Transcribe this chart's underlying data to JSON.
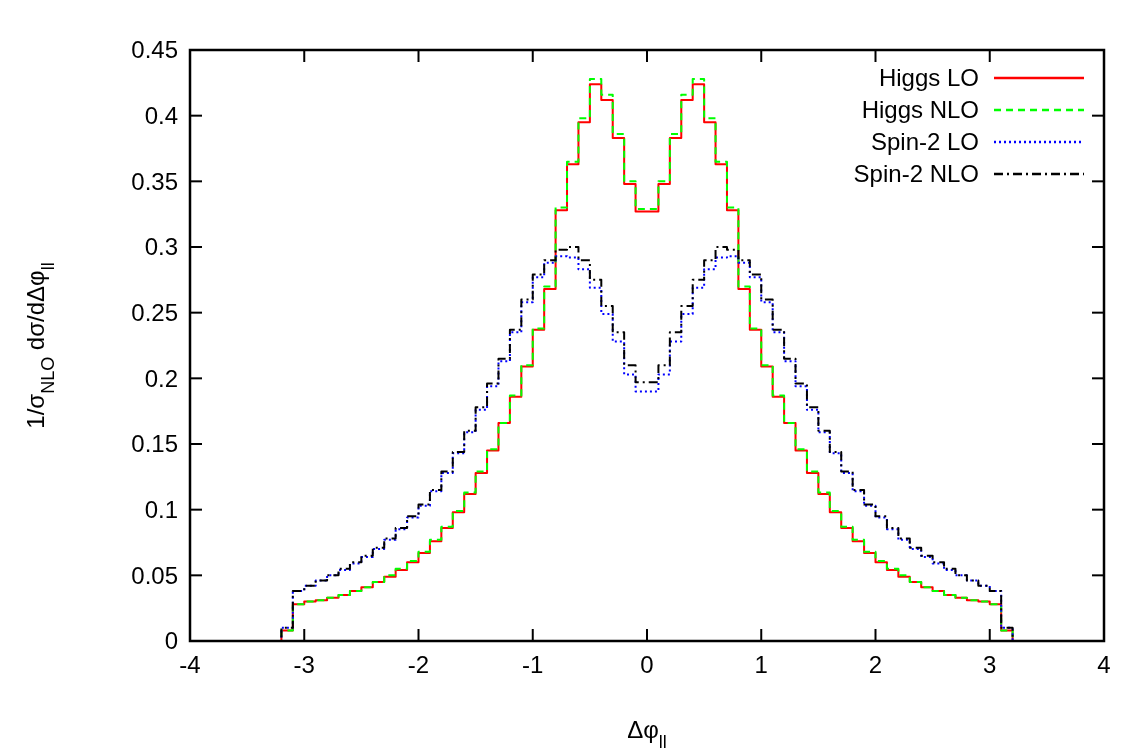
{
  "chart_data": {
    "type": "step",
    "xlabel": "Δφ$_{ll}$",
    "ylabel": "1/σ$_{NLO}$ dσ/dΔφ$_{ll}$",
    "x": [
      -4,
      -3.2,
      -3.1,
      -3.0,
      -2.9,
      -2.8,
      -2.7,
      -2.6,
      -2.5,
      -2.4,
      -2.3,
      -2.2,
      -2.1,
      -2.0,
      -1.9,
      -1.8,
      -1.7,
      -1.6,
      -1.5,
      -1.4,
      -1.3,
      -1.2,
      -1.1,
      -1.0,
      -0.9,
      -0.8,
      -0.7,
      -0.6,
      -0.5,
      -0.4,
      -0.3,
      -0.2,
      -0.1,
      0,
      0.1,
      0.2,
      0.3,
      0.4,
      0.5,
      0.6,
      0.7,
      0.8,
      0.9,
      1.0,
      1.1,
      1.2,
      1.3,
      1.4,
      1.5,
      1.6,
      1.7,
      1.8,
      1.9,
      2.0,
      2.1,
      2.2,
      2.3,
      2.4,
      2.5,
      2.6,
      2.7,
      2.8,
      2.9,
      3.0,
      3.1,
      3.2,
      4
    ],
    "series": [
      {
        "name": "Higgs LO",
        "color": "#ff0000",
        "line_style": "solid",
        "values": [
          0,
          0.008,
          0.028,
          0.03,
          0.031,
          0.033,
          0.035,
          0.038,
          0.041,
          0.045,
          0.049,
          0.054,
          0.06,
          0.067,
          0.076,
          0.086,
          0.098,
          0.112,
          0.128,
          0.145,
          0.166,
          0.186,
          0.209,
          0.237,
          0.268,
          0.328,
          0.363,
          0.395,
          0.424,
          0.412,
          0.383,
          0.348,
          0.327,
          0.327,
          0.348,
          0.383,
          0.412,
          0.424,
          0.395,
          0.363,
          0.328,
          0.268,
          0.237,
          0.209,
          0.186,
          0.166,
          0.145,
          0.128,
          0.112,
          0.098,
          0.086,
          0.076,
          0.067,
          0.06,
          0.054,
          0.049,
          0.045,
          0.041,
          0.038,
          0.035,
          0.033,
          0.031,
          0.03,
          0.028,
          0.008,
          0,
          0
        ]
      },
      {
        "name": "Higgs NLO",
        "color": "#00ff00",
        "line_style": "dashed",
        "values": [
          0,
          0.008,
          0.028,
          0.03,
          0.031,
          0.033,
          0.035,
          0.038,
          0.041,
          0.045,
          0.05,
          0.055,
          0.061,
          0.068,
          0.077,
          0.087,
          0.099,
          0.113,
          0.129,
          0.146,
          0.166,
          0.187,
          0.21,
          0.238,
          0.27,
          0.33,
          0.365,
          0.398,
          0.428,
          0.416,
          0.386,
          0.35,
          0.329,
          0.329,
          0.35,
          0.386,
          0.416,
          0.428,
          0.398,
          0.365,
          0.33,
          0.27,
          0.238,
          0.21,
          0.187,
          0.166,
          0.146,
          0.129,
          0.113,
          0.099,
          0.087,
          0.077,
          0.068,
          0.061,
          0.055,
          0.05,
          0.045,
          0.041,
          0.038,
          0.035,
          0.033,
          0.031,
          0.03,
          0.028,
          0.008,
          0,
          0
        ]
      },
      {
        "name": "Spin-2 LO",
        "color": "#0000ff",
        "line_style": "dotted",
        "values": [
          0,
          0.01,
          0.038,
          0.042,
          0.046,
          0.05,
          0.054,
          0.059,
          0.064,
          0.07,
          0.077,
          0.085,
          0.094,
          0.103,
          0.114,
          0.128,
          0.143,
          0.159,
          0.176,
          0.194,
          0.213,
          0.235,
          0.258,
          0.277,
          0.288,
          0.293,
          0.292,
          0.283,
          0.269,
          0.249,
          0.228,
          0.203,
          0.19,
          0.19,
          0.203,
          0.228,
          0.249,
          0.269,
          0.283,
          0.292,
          0.293,
          0.288,
          0.277,
          0.258,
          0.235,
          0.213,
          0.194,
          0.176,
          0.159,
          0.143,
          0.128,
          0.114,
          0.103,
          0.094,
          0.085,
          0.077,
          0.07,
          0.064,
          0.059,
          0.054,
          0.05,
          0.046,
          0.042,
          0.038,
          0.01,
          0,
          0
        ]
      },
      {
        "name": "Spin-2 NLO",
        "color": "#000000",
        "line_style": "dashdot",
        "values": [
          0,
          0.01,
          0.038,
          0.042,
          0.046,
          0.05,
          0.055,
          0.06,
          0.065,
          0.071,
          0.078,
          0.086,
          0.095,
          0.104,
          0.115,
          0.129,
          0.144,
          0.16,
          0.178,
          0.196,
          0.215,
          0.237,
          0.26,
          0.279,
          0.29,
          0.298,
          0.3,
          0.29,
          0.275,
          0.255,
          0.235,
          0.21,
          0.197,
          0.197,
          0.21,
          0.235,
          0.255,
          0.275,
          0.29,
          0.3,
          0.298,
          0.29,
          0.279,
          0.26,
          0.237,
          0.215,
          0.196,
          0.178,
          0.16,
          0.144,
          0.129,
          0.115,
          0.104,
          0.095,
          0.086,
          0.078,
          0.071,
          0.065,
          0.06,
          0.055,
          0.05,
          0.046,
          0.042,
          0.038,
          0.01,
          0,
          0
        ]
      }
    ],
    "xlim": [
      -4,
      4
    ],
    "xticks": [
      -4,
      -3,
      -2,
      -1,
      0,
      1,
      2,
      3,
      4
    ],
    "ylim": [
      0,
      0.45
    ],
    "yticks": [
      0,
      0.05,
      0.1,
      0.15,
      0.2,
      0.25,
      0.3,
      0.35,
      0.4,
      0.45
    ],
    "grid": false,
    "legend": "top right"
  }
}
